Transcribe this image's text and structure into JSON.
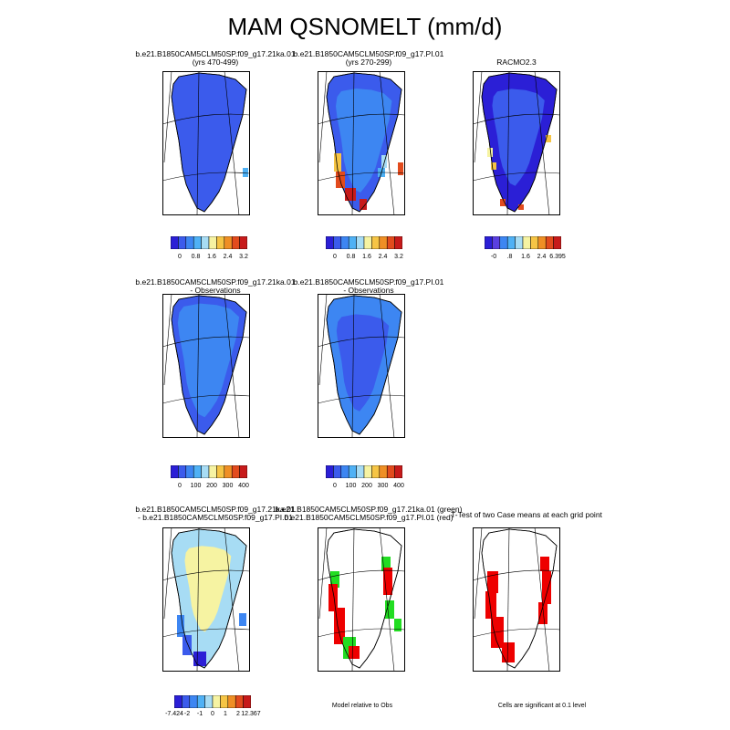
{
  "title": "MAM QSNOMELT (mm/d)",
  "panels": [
    {
      "line1": "b.e21.B1850CAM5CLM50SP.f09_g17.21ka.01",
      "line2": "(yrs 470-499)"
    },
    {
      "line1": "b.e21.B1850CAM5CLM50SP.f09_g17.PI.01",
      "line2": "(yrs 270-299)"
    },
    {
      "line1": "RACMO2.3",
      "line2": ""
    },
    {
      "line1": "b.e21.B1850CAM5CLM50SP.f09_g17.21ka.01",
      "line2": "- Observations"
    },
    {
      "line1": "b.e21.B1850CAM5CLM50SP.f09_g17.PI.01",
      "line2": "- Observations"
    },
    {
      "line1": "b.e21.B1850CAM5CLM50SP.f09_g17.21ka.01",
      "line2": "- b.e21.B1850CAM5CLM50SP.f09_g17.PI.01"
    },
    {
      "line1": "b.e21.B1850CAM5CLM50SP.f09_g17.21ka.01 (green)",
      "line2": "b.e21.B1850CAM5CLM50SP.f09_g17.PI.01 (red)"
    },
    {
      "line1": "T-Test of two Case means at each grid point",
      "line2": ""
    }
  ],
  "colorbars": [
    {
      "ticks": [
        "0",
        "0.8",
        "1.6",
        "2.4",
        "3.2"
      ]
    },
    {
      "ticks": [
        "0",
        "0.8",
        "1.6",
        "2.4",
        "3.2"
      ]
    },
    {
      "ticks": [
        "-0",
        ".8",
        "1.6",
        "2.4",
        "6.395"
      ]
    },
    {
      "ticks": [
        "0",
        "100",
        "200",
        "300",
        "400"
      ]
    },
    {
      "ticks": [
        "0",
        "100",
        "200",
        "300",
        "400"
      ]
    },
    {
      "ticks": [
        "-7.424",
        "-2",
        "-1",
        "0",
        "1",
        "2",
        "12.367"
      ]
    }
  ],
  "notes": {
    "model_relative": "Model relative to Obs",
    "significance": "Cells are significant at 0.1 level"
  },
  "colors": {
    "melt_palette": [
      "#2b1fd6",
      "#3b5bec",
      "#3d86f2",
      "#4fb1f5",
      "#a7dcf4",
      "#f6f3a2",
      "#f6c545",
      "#ef8f25",
      "#e24b1d",
      "#c71a1a"
    ],
    "diff_palette": [
      "#2b1fd6",
      "#3b5bec",
      "#3d86f2",
      "#4fb1f5",
      "#a7dcf4",
      "#f6f3a2",
      "#f6c545",
      "#ef8f25",
      "#e24b1d",
      "#c71a1a"
    ],
    "racmo_palette": [
      "#2b1fd6",
      "#5a3fe0",
      "#3d86f2",
      "#4fb1f5",
      "#a7dcf4",
      "#f6f3a2",
      "#f6c545",
      "#ef8f25",
      "#e24b1d",
      "#c71a1a"
    ],
    "green_case": "#22dd22",
    "red_case": "#ee0000"
  },
  "chart_data": [
    {
      "type": "heatmap",
      "title": "b.e21.B1850CAM5CLM50SP.f09_g17.21ka.01 (yrs 470-499)",
      "colorbar_ticks": [
        0,
        0.8,
        1.6,
        2.4,
        3.2
      ]
    },
    {
      "type": "heatmap",
      "title": "b.e21.B1850CAM5CLM50SP.f09_g17.PI.01 (yrs 270-299)",
      "colorbar_ticks": [
        0,
        0.8,
        1.6,
        2.4,
        3.2
      ]
    },
    {
      "type": "heatmap",
      "title": "RACMO2.3",
      "colorbar_ticks": [
        0,
        0.8,
        1.6,
        2.4,
        6.395
      ]
    },
    {
      "type": "heatmap",
      "title": "b.e21.B1850CAM5CLM50SP.f09_g17.21ka.01 - Observations",
      "colorbar_ticks": [
        0,
        100,
        200,
        300,
        400
      ]
    },
    {
      "type": "heatmap",
      "title": "b.e21.B1850CAM5CLM50SP.f09_g17.PI.01 - Observations",
      "colorbar_ticks": [
        0,
        100,
        200,
        300,
        400
      ]
    },
    {
      "type": "heatmap",
      "title": "b.e21.B1850CAM5CLM50SP.f09_g17.21ka.01 - b.e21.B1850CAM5CLM50SP.f09_g17.PI.01",
      "colorbar_ticks": [
        -7.424,
        -2,
        -1,
        0,
        1,
        2,
        12.367
      ]
    },
    {
      "type": "heatmap",
      "title": "b.e21.B1850CAM5CLM50SP.f09_g17.21ka.01 (green) b.e21.B1850CAM5CLM50SP.f09_g17.PI.01 (red)",
      "note": "Model relative to Obs"
    },
    {
      "type": "heatmap",
      "title": "T-Test of two Case means at each grid point",
      "note": "Cells are significant at 0.1 level"
    }
  ]
}
